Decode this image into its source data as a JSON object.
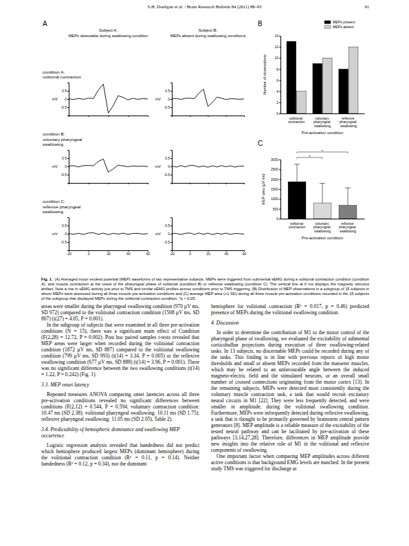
{
  "header": {
    "running_title": "S.H. Doeltgen et al. / Brain Research Bulletin 84 (2011) 88–93",
    "page": "91"
  },
  "chart_data": [
    {
      "type": "line",
      "panel": "A",
      "subjects": [
        "Subject A:",
        "Subject B:"
      ],
      "subject_notes": [
        "MEPs detectable during swallowing condition",
        "MEPs absent during swallowing conditions"
      ],
      "conditions": [
        [
          "condition A:",
          "volitional contraction"
        ],
        [
          "condition B:",
          "voluntary pharyngeal",
          "swallowing"
        ],
        [
          "condition C:",
          "reflexive pharyngeal",
          "swallowing"
        ]
      ],
      "y_label": "mV",
      "color": "#000000",
      "x": [
        -20,
        -15,
        -10,
        -5,
        0,
        5,
        10,
        15,
        20,
        25,
        30,
        35,
        40,
        45,
        50,
        55,
        60
      ],
      "xlim": [
        -20,
        60
      ],
      "xticks": [
        -20,
        0,
        20,
        40,
        60
      ],
      "ylim": [
        -1,
        1
      ],
      "yticks": [
        -0.5,
        0,
        0.5
      ],
      "traces": [
        [
          [
            0.02,
            -0.03,
            0.04,
            -0.02,
            0.05,
            0.03,
            0.55,
            0.9,
            -0.85,
            -0.4,
            0.2,
            0.1,
            -0.05,
            0.04,
            -0.02,
            0.03,
            0.0
          ],
          [
            0.01,
            0.03,
            -0.02,
            0.04,
            0.05,
            0.02,
            0.35,
            0.6,
            -0.45,
            -0.2,
            0.12,
            0.05,
            -0.03,
            0.02,
            0.01,
            -0.02,
            0.01
          ]
        ],
        [
          [
            0.02,
            0.04,
            -0.03,
            0.05,
            0.06,
            0.04,
            0.3,
            0.45,
            -0.35,
            -0.15,
            0.08,
            0.03,
            -0.02,
            0.03,
            0.0,
            0.02,
            -0.01
          ],
          [
            0.03,
            -0.04,
            0.05,
            -0.03,
            0.06,
            0.05,
            -0.04,
            0.03,
            -0.05,
            0.04,
            -0.03,
            0.05,
            -0.02,
            0.03,
            -0.04,
            0.02,
            0.01
          ]
        ],
        [
          [
            0.02,
            -0.03,
            0.03,
            -0.04,
            0.05,
            0.06,
            -0.03,
            0.04,
            -0.05,
            0.03,
            -0.02,
            0.04,
            -0.03,
            0.02,
            0.03,
            -0.02,
            0.01
          ],
          [
            0.03,
            0.02,
            -0.04,
            0.03,
            0.05,
            -0.04,
            0.05,
            -0.03,
            0.04,
            -0.05,
            0.03,
            -0.02,
            0.04,
            -0.03,
            0.02,
            0.01,
            -0.02
          ]
        ]
      ]
    },
    {
      "type": "bar",
      "panel": "B",
      "categories": [
        "volitional contraction",
        "voluntary pharyngeal swallowing",
        "reflexive pharyngeal swallowing"
      ],
      "series": [
        {
          "name": "MEPs present",
          "color": "#000000",
          "values": [
            13,
            9,
            8
          ]
        },
        {
          "name": "MEPs absent",
          "color": "#d0d0d0",
          "values": [
            4,
            10,
            12
          ]
        }
      ],
      "ylim": [
        0,
        14
      ],
      "yticks": [
        0,
        2,
        4,
        6,
        8,
        10,
        12,
        14
      ],
      "y_label": "Number of observations",
      "x_label": "Pre-activation condition",
      "legend": "top-right"
    },
    {
      "type": "bar",
      "panel": "C",
      "categories": [
        "volitional contraction",
        "voluntary pharyngeal swallowing",
        "reflexive pharyngeal swallowing"
      ],
      "values": [
        1872,
        799,
        677
      ],
      "errors": [
        887,
        993,
        888
      ],
      "colors": [
        "#000000",
        "#d9d9d9",
        "#7f7f7f"
      ],
      "ylim": [
        0,
        3000
      ],
      "yticks": [
        0,
        500,
        1000,
        1500,
        2000,
        2500,
        3000
      ],
      "y_label": "MEP area (µV ms)",
      "x_label": "Pre-activation condition",
      "significance": [
        {
          "pair": [
            0,
            1
          ],
          "label": "*"
        },
        {
          "pair": [
            0,
            2
          ],
          "label": "*"
        }
      ]
    }
  ],
  "caption": {
    "label": "Fig. 1.",
    "text": "(A) Averaged motor evoked potential (MEP) waveforms of two representative subjects. MEPs were triggered from submental sEMG during a volitional contraction condition (condition A), and muscle contraction at the onset of the pharyngeal phase of volitional (condition B) or reflexive swallowing (condition C). The vertical line at 0 ms displays the magnetic stimulus artifact. Note a rise in sEMG activity just prior to TMS and similar sEMG profiles across conditions prior to TMS triggering. (B) Distribution of MEP observations in a subgroup of 15 subjects in whom MEPs were assessed during all three muscle pre-activation conditions and (C) average MEP area (+1 SD) during all three muscle pre-activation conditions recorded in the 15 subjects of the subgroup that displayed MEPs during the volitional contraction condition. *p < 0.05."
  },
  "body": {
    "left": [
      {
        "text": "areas were smaller during the pharyngeal swallowing condition (970 µV ms, SD 972) compared to the volitional contraction condition (1508 µV ms, SD 807) (t(27) = 4.05, P = 0.001)."
      },
      {
        "text": "In the subgroup of subjects that were examined in all three pre-activation conditions (N = 15), there was a significant main effect of Condition (F(2,28) = 12.72, P = 0.002). Post hoc paired samples t-tests revealed that MEP areas were larger when recorded during the volitional contraction condition (1872 µV ms, SD 887) compared to the volitional swallowing condition (799 µV ms, SD 993) (t(14) = 3.34, P = 0.005) or the reflexive swallowing condition (677 µV ms, SD 888) (t(14) = 3.96, P = 0.001). There was no significant difference between the two swallowing conditions (t(14) = 1.22, P = 0.242) (Fig. 1)."
      },
      {
        "heading": "3.3. MEP onset latency"
      },
      {
        "text": "Repeated measures ANOVA comparing onset latencies across all three pre-activation conditions revealed no significant differences between conditions (F(2,12) = 0.544, P = 0.594; voluntary contraction condition: 10.47 ms (SD 2.38); volitional pharyngeal swallowing: 10.11 ms (SD 1.75); reflexive pharyngeal swallowing: 11.05 ms (SD 2.05), Table 2)."
      },
      {
        "heading": "3.4. Predictability of hemispheric dominance and swallowing MEP occurrence"
      },
      {
        "text": "Logistic regression analysis revealed that handedness did not predict which hemisphere produced largest MEPs (dominant hemisphere) during the volitional contraction condition (R² = 0.11, p = 0.14). Neither handedness (R² = 0.12, p = 0.34), nor the dominant"
      }
    ],
    "right": [
      {
        "text": "hemisphere for volitional contraction (R² = 0.017, p = 0.46) predicted presence of MEPs during the volitional swallowing condition."
      },
      {
        "heading": "4. Discussion"
      },
      {
        "text": "In order to determine the contribution of M1 to the motor control of the pharyngeal phase of swallowing, we evaluated the excitability of submental corticobulbar projections during execution of three swallowing-related tasks. In 13 subjects, no discernable MEPs could be recorded during any of the tasks. This finding is in line with previous reports of high motor thresholds and small or absent MEPs recorded from the masseter muscles, which may be related to an unfavourable angle between the induced magneto-electric field and the stimulated neurons, or an overall small number of crossed connections originating from the motor cortex [13]. In the remaining subjects, MEPs were detected most consistently during the voluntary muscle contraction task, a task that would recruit excitatory neural circuits in M1 [22]. They were less frequently detected, and were smaller in amplitude, during the volitional swallowing condition. Furthermore, MEPs were infrequently detected during reflexive swallowing, a task that is thought to be primarily governed by brainstem central pattern generators [8]. MEP amplitude is a reliable measure of the excitability of the tested neural pathway and can be facilitated by pre-activation of these pathways [3,14,27,28]. Therefore, differences in MEP amplitude provide new insights into the relative role of M1 in the volitional and reflexive components of swallowing."
      },
      {
        "text": "One important factor when comparing MEP amplitudes across different active conditions is that background EMG levels are matched. In the present study TMS was triggered for discharge at"
      }
    ]
  }
}
